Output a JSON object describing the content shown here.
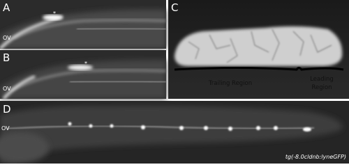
{
  "panels": [
    {
      "label": "A",
      "annotations": [
        "*",
        "OV"
      ]
    },
    {
      "label": "B",
      "annotations": [
        "*",
        "OV"
      ]
    },
    {
      "label": "C",
      "regions": {
        "trailing": "Trailing Region",
        "leading": [
          "Leading",
          "Region"
        ]
      }
    },
    {
      "label": "D",
      "annotations": [
        "OV"
      ],
      "caption": "tg(-8.0cldnb:lyneGFP)"
    }
  ]
}
